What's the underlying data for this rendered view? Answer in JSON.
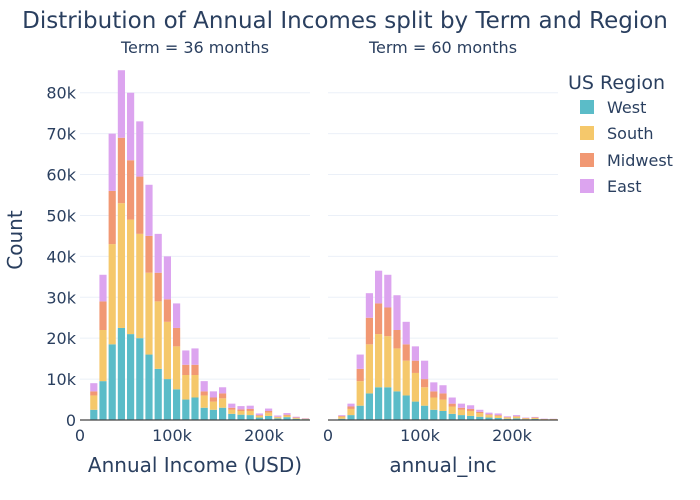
{
  "chart_data": {
    "type": "bar",
    "barmode": "stack",
    "title": "Distribution of Annual Incomes split by Term and Region",
    "xlabel": "Annual Income (USD)",
    "xlabel_right": "annual_inc",
    "ylabel": "Count",
    "ylim": [
      0,
      88000
    ],
    "xlim": [
      0,
      250000
    ],
    "bin_width": 10000,
    "yticks": [
      0,
      10000,
      20000,
      30000,
      40000,
      50000,
      60000,
      70000,
      80000
    ],
    "ytick_labels": [
      "0",
      "10k",
      "20k",
      "30k",
      "40k",
      "50k",
      "60k",
      "70k",
      "80k"
    ],
    "xticks": [
      0,
      100000,
      200000
    ],
    "xtick_labels": [
      "0",
      "100k",
      "200k"
    ],
    "grid": true,
    "legend": {
      "title": "US Region",
      "position": "right"
    },
    "series": [
      {
        "name": "West",
        "color": "#5bbcc8"
      },
      {
        "name": "South",
        "color": "#f5c86b"
      },
      {
        "name": "Midwest",
        "color": "#f19873"
      },
      {
        "name": "East",
        "color": "#dca4ef"
      }
    ],
    "facets": [
      {
        "label": "Term = 36 months",
        "x": [
          15000,
          25000,
          35000,
          45000,
          55000,
          65000,
          75000,
          85000,
          95000,
          105000,
          115000,
          125000,
          135000,
          145000,
          155000,
          165000,
          175000,
          185000,
          195000,
          205000,
          215000,
          225000,
          235000,
          245000
        ],
        "stacks": {
          "West": [
            2500,
            9500,
            18500,
            22500,
            21000,
            20000,
            16000,
            12500,
            10000,
            7500,
            5000,
            5500,
            3000,
            2500,
            3000,
            1500,
            1300,
            1200,
            600,
            1000,
            400,
            700,
            300,
            200
          ],
          "South": [
            3500,
            12500,
            24500,
            30500,
            28000,
            25500,
            20000,
            16500,
            14000,
            10500,
            6000,
            5500,
            3000,
            2000,
            2300,
            1000,
            900,
            1000,
            400,
            800,
            300,
            400,
            200,
            100
          ],
          "Midwest": [
            1000,
            7000,
            13000,
            16000,
            14500,
            14000,
            9000,
            7000,
            5500,
            4500,
            2500,
            2500,
            1000,
            1000,
            1200,
            500,
            400,
            500,
            200,
            400,
            100,
            200,
            100,
            50
          ],
          "East": [
            2000,
            6500,
            14000,
            16500,
            16500,
            13500,
            12500,
            9500,
            10500,
            6000,
            3500,
            4000,
            2500,
            1500,
            1500,
            1000,
            800,
            800,
            400,
            600,
            300,
            400,
            200,
            100
          ]
        }
      },
      {
        "label": "Term = 60 months",
        "x": [
          15000,
          25000,
          35000,
          45000,
          55000,
          65000,
          75000,
          85000,
          95000,
          105000,
          115000,
          125000,
          135000,
          145000,
          155000,
          165000,
          175000,
          185000,
          195000,
          205000,
          215000,
          225000,
          235000,
          245000
        ],
        "stacks": {
          "West": [
            300,
            1200,
            3500,
            6500,
            8000,
            8000,
            7000,
            6000,
            4500,
            3500,
            2500,
            2200,
            1500,
            1200,
            1000,
            800,
            600,
            500,
            300,
            400,
            200,
            250,
            100,
            100
          ],
          "South": [
            500,
            1500,
            6000,
            12000,
            13000,
            12500,
            10500,
            8500,
            7000,
            4500,
            3000,
            2800,
            1800,
            1300,
            1200,
            900,
            600,
            500,
            300,
            400,
            200,
            250,
            100,
            100
          ],
          "Midwest": [
            200,
            600,
            3000,
            6500,
            7500,
            7000,
            4500,
            4000,
            3000,
            2000,
            1500,
            1500,
            700,
            500,
            500,
            300,
            200,
            200,
            100,
            150,
            80,
            100,
            50,
            50
          ],
          "East": [
            200,
            700,
            3500,
            6000,
            8000,
            8000,
            8500,
            5500,
            3500,
            4500,
            2200,
            2000,
            1500,
            1000,
            900,
            500,
            400,
            400,
            200,
            250,
            120,
            150,
            80,
            50
          ]
        }
      }
    ]
  }
}
